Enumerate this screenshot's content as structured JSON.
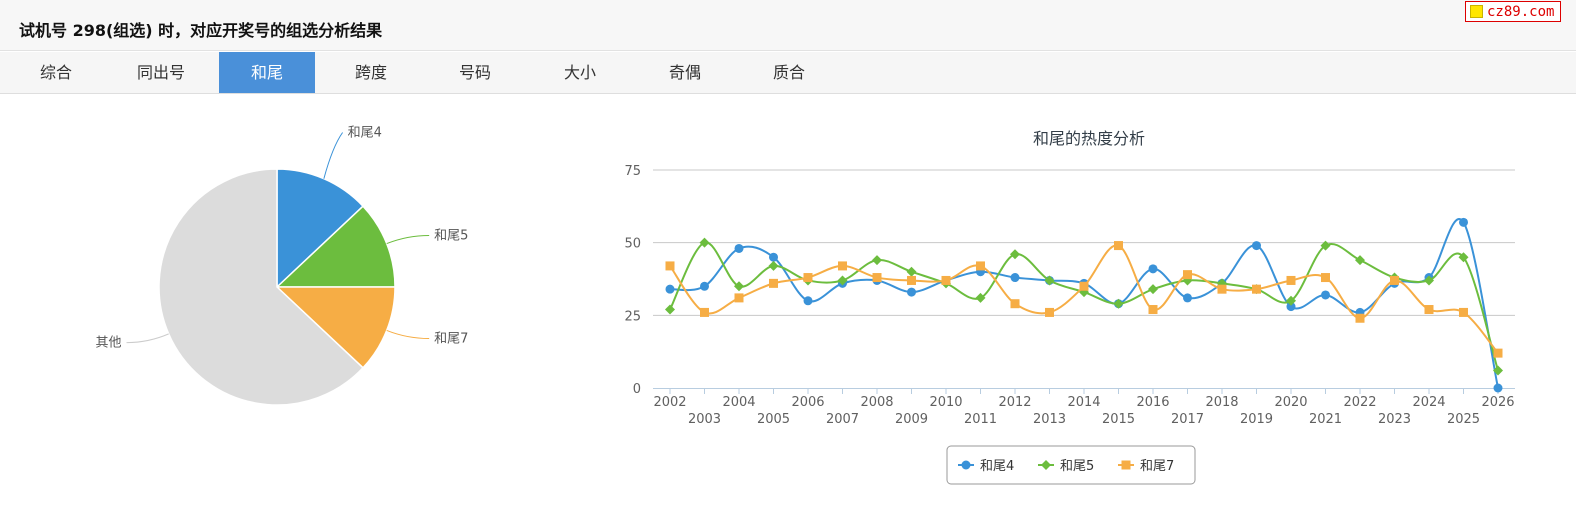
{
  "header": {
    "title": "试机号 298(组选) 时，对应开奖号的组选分析结果"
  },
  "badge": {
    "text": "cz89.com"
  },
  "tabs": [
    {
      "label": "综合",
      "active": false
    },
    {
      "label": "同出号",
      "active": false
    },
    {
      "label": "和尾",
      "active": true
    },
    {
      "label": "跨度",
      "active": false
    },
    {
      "label": "号码",
      "active": false
    },
    {
      "label": "大小",
      "active": false
    },
    {
      "label": "奇偶",
      "active": false
    },
    {
      "label": "质合",
      "active": false
    }
  ],
  "colors": {
    "series1": "#3a92d8",
    "series2": "#6cbd3e",
    "series3": "#f6ad45",
    "other": "#dcdcdc",
    "accent": "#4a90d9"
  },
  "chart_data": [
    {
      "type": "pie",
      "slices": [
        {
          "label": "和尾4",
          "value": 13
        },
        {
          "label": "和尾5",
          "value": 12
        },
        {
          "label": "和尾7",
          "value": 12
        },
        {
          "label": "其他",
          "value": 63
        }
      ]
    },
    {
      "type": "line",
      "title": "和尾的热度分析",
      "x": [
        "2002",
        "2003",
        "2004",
        "2005",
        "2006",
        "2007",
        "2008",
        "2009",
        "2010",
        "2011",
        "2012",
        "2013",
        "2014",
        "2015",
        "2016",
        "2017",
        "2018",
        "2019",
        "2020",
        "2021",
        "2022",
        "2023",
        "2024",
        "2025",
        "2026"
      ],
      "yticks": [
        0,
        25,
        50,
        75
      ],
      "ylim": [
        0,
        75
      ],
      "grid": true,
      "legend": "bottom-center",
      "series": [
        {
          "name": "和尾4",
          "marker": "circle",
          "values": [
            34,
            35,
            48,
            45,
            30,
            36,
            37,
            33,
            37,
            40,
            38,
            37,
            36,
            29,
            41,
            31,
            36,
            49,
            28,
            32,
            26,
            36,
            38,
            57,
            0
          ]
        },
        {
          "name": "和尾5",
          "marker": "diamond",
          "values": [
            27,
            50,
            35,
            42,
            37,
            37,
            44,
            40,
            36,
            31,
            46,
            37,
            33,
            29,
            34,
            37,
            36,
            34,
            30,
            49,
            44,
            38,
            37,
            45,
            6
          ]
        },
        {
          "name": "和尾7",
          "marker": "square",
          "values": [
            42,
            26,
            31,
            36,
            38,
            42,
            38,
            37,
            37,
            42,
            29,
            26,
            35,
            49,
            27,
            39,
            34,
            34,
            37,
            38,
            24,
            37,
            27,
            26,
            12
          ]
        }
      ]
    }
  ]
}
